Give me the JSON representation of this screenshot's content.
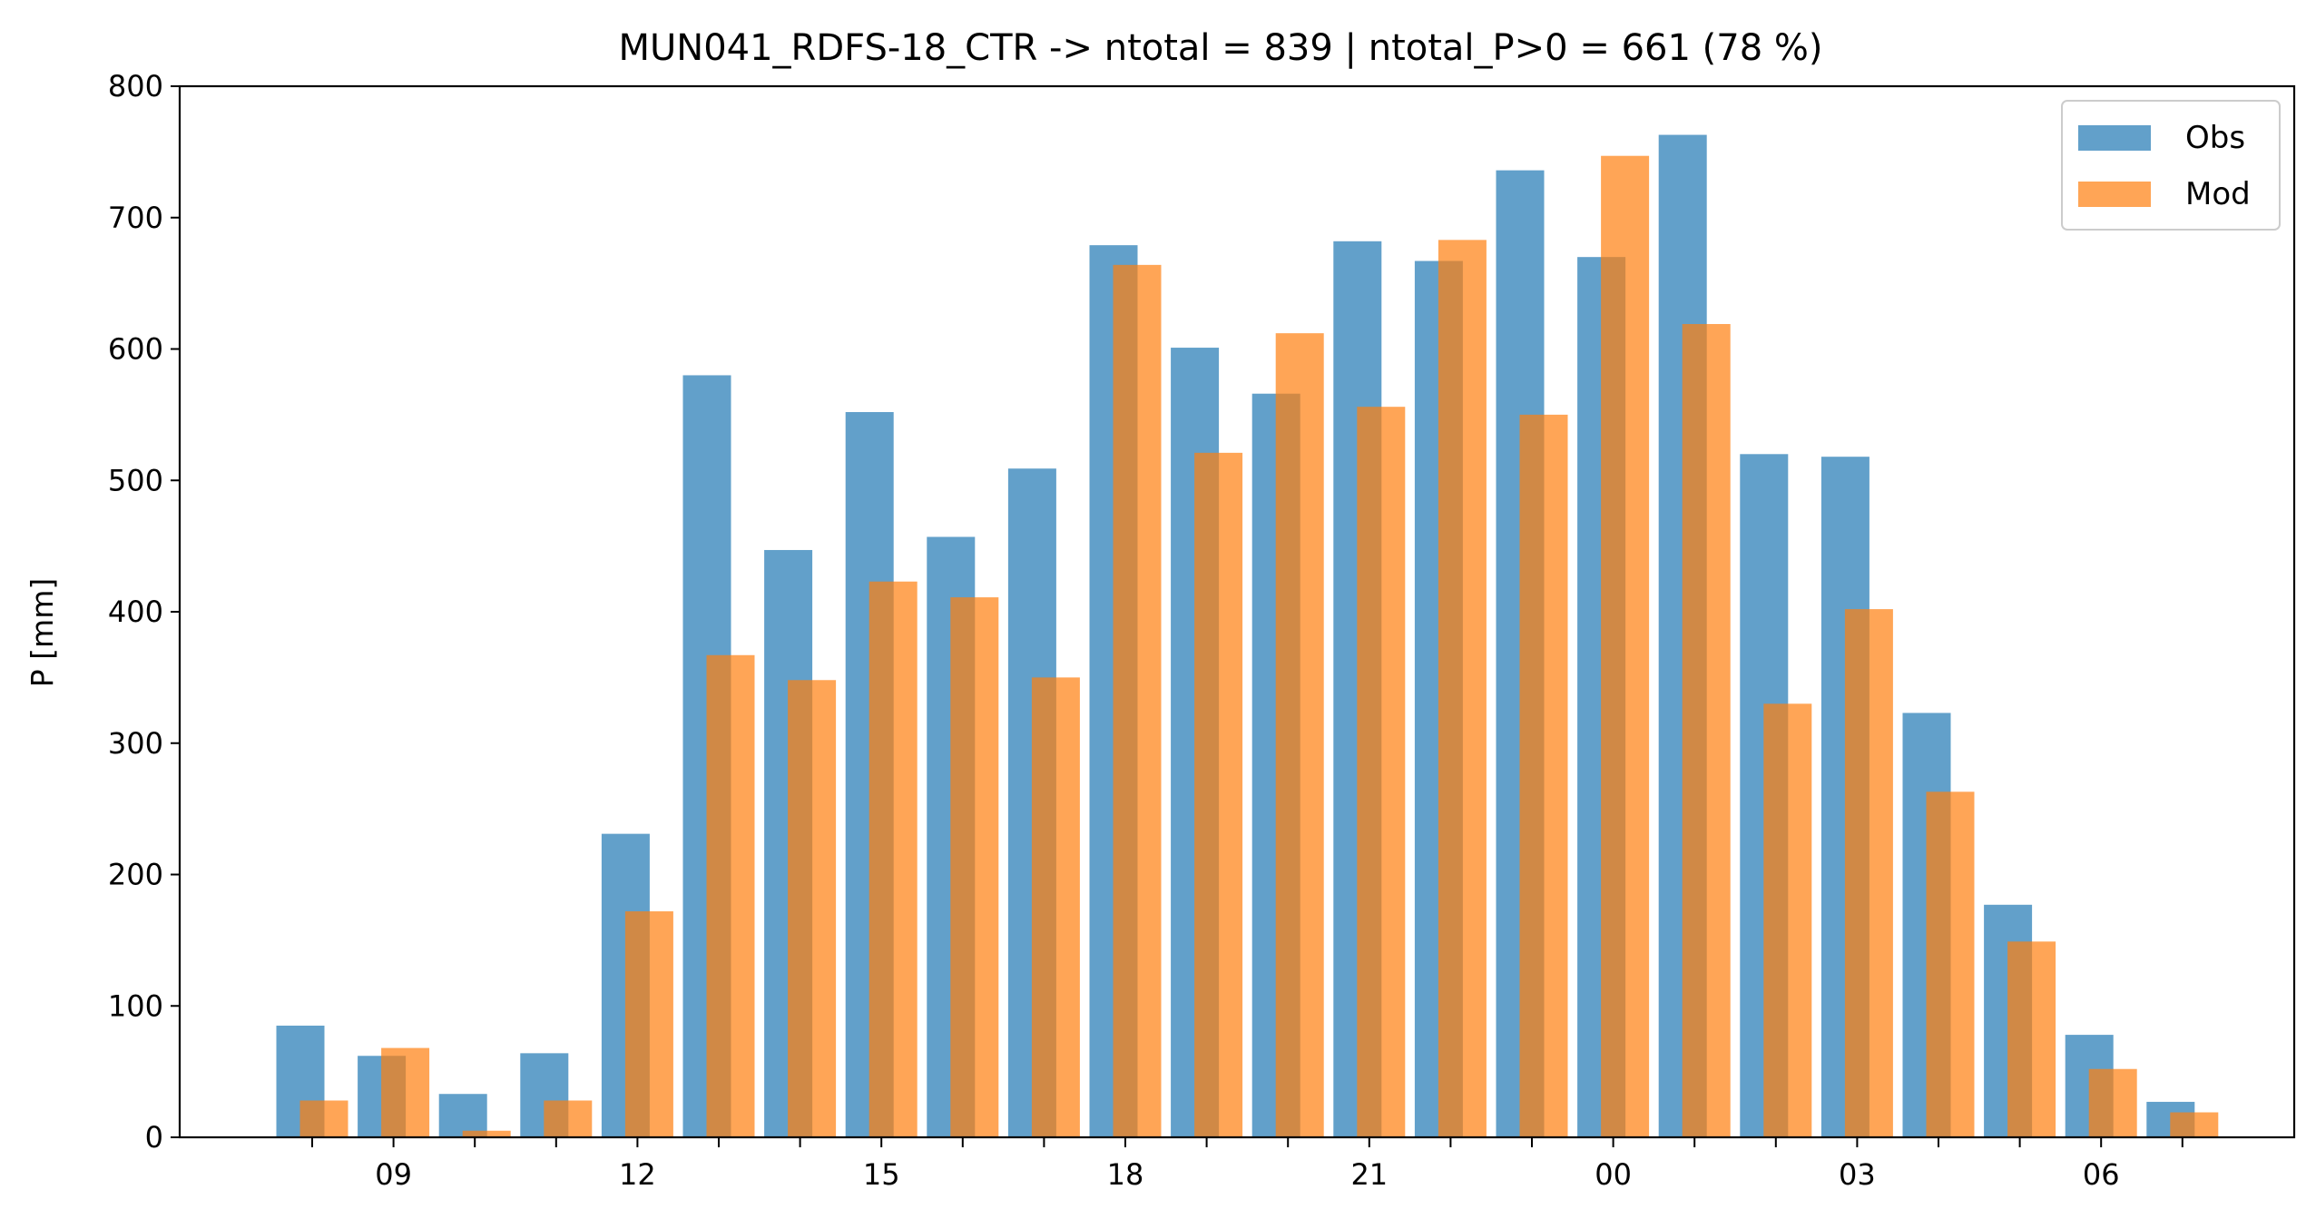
{
  "chart_data": {
    "type": "bar",
    "title": "MUN041_RDFS-18_CTR -> ntotal = 839 | ntotal_P>0 = 661 (78 %)",
    "xlabel": "",
    "ylabel": "P [mm]",
    "ylim": [
      0,
      800
    ],
    "yticks": [
      0,
      100,
      200,
      300,
      400,
      500,
      600,
      700,
      800
    ],
    "hours": [
      8,
      9,
      10,
      11,
      12,
      13,
      14,
      15,
      16,
      17,
      18,
      19,
      20,
      21,
      22,
      23,
      0,
      1,
      2,
      3,
      4,
      5,
      6,
      7
    ],
    "xtick_labels": [
      "09",
      "12",
      "15",
      "18",
      "21",
      "00",
      "03",
      "06"
    ],
    "grid": false,
    "legend_position": "upper right",
    "series": [
      {
        "name": "Obs",
        "color": "#1f77b4",
        "values": [
          85,
          62,
          33,
          64,
          231,
          580,
          447,
          552,
          457,
          509,
          679,
          601,
          566,
          682,
          667,
          736,
          670,
          763,
          520,
          518,
          323,
          177,
          78,
          27
        ]
      },
      {
        "name": "Mod",
        "color": "#ff7f0e",
        "values": [
          28,
          68,
          5,
          28,
          172,
          367,
          348,
          423,
          411,
          350,
          664,
          521,
          612,
          556,
          683,
          550,
          747,
          619,
          330,
          402,
          263,
          149,
          52,
          19
        ]
      }
    ]
  }
}
